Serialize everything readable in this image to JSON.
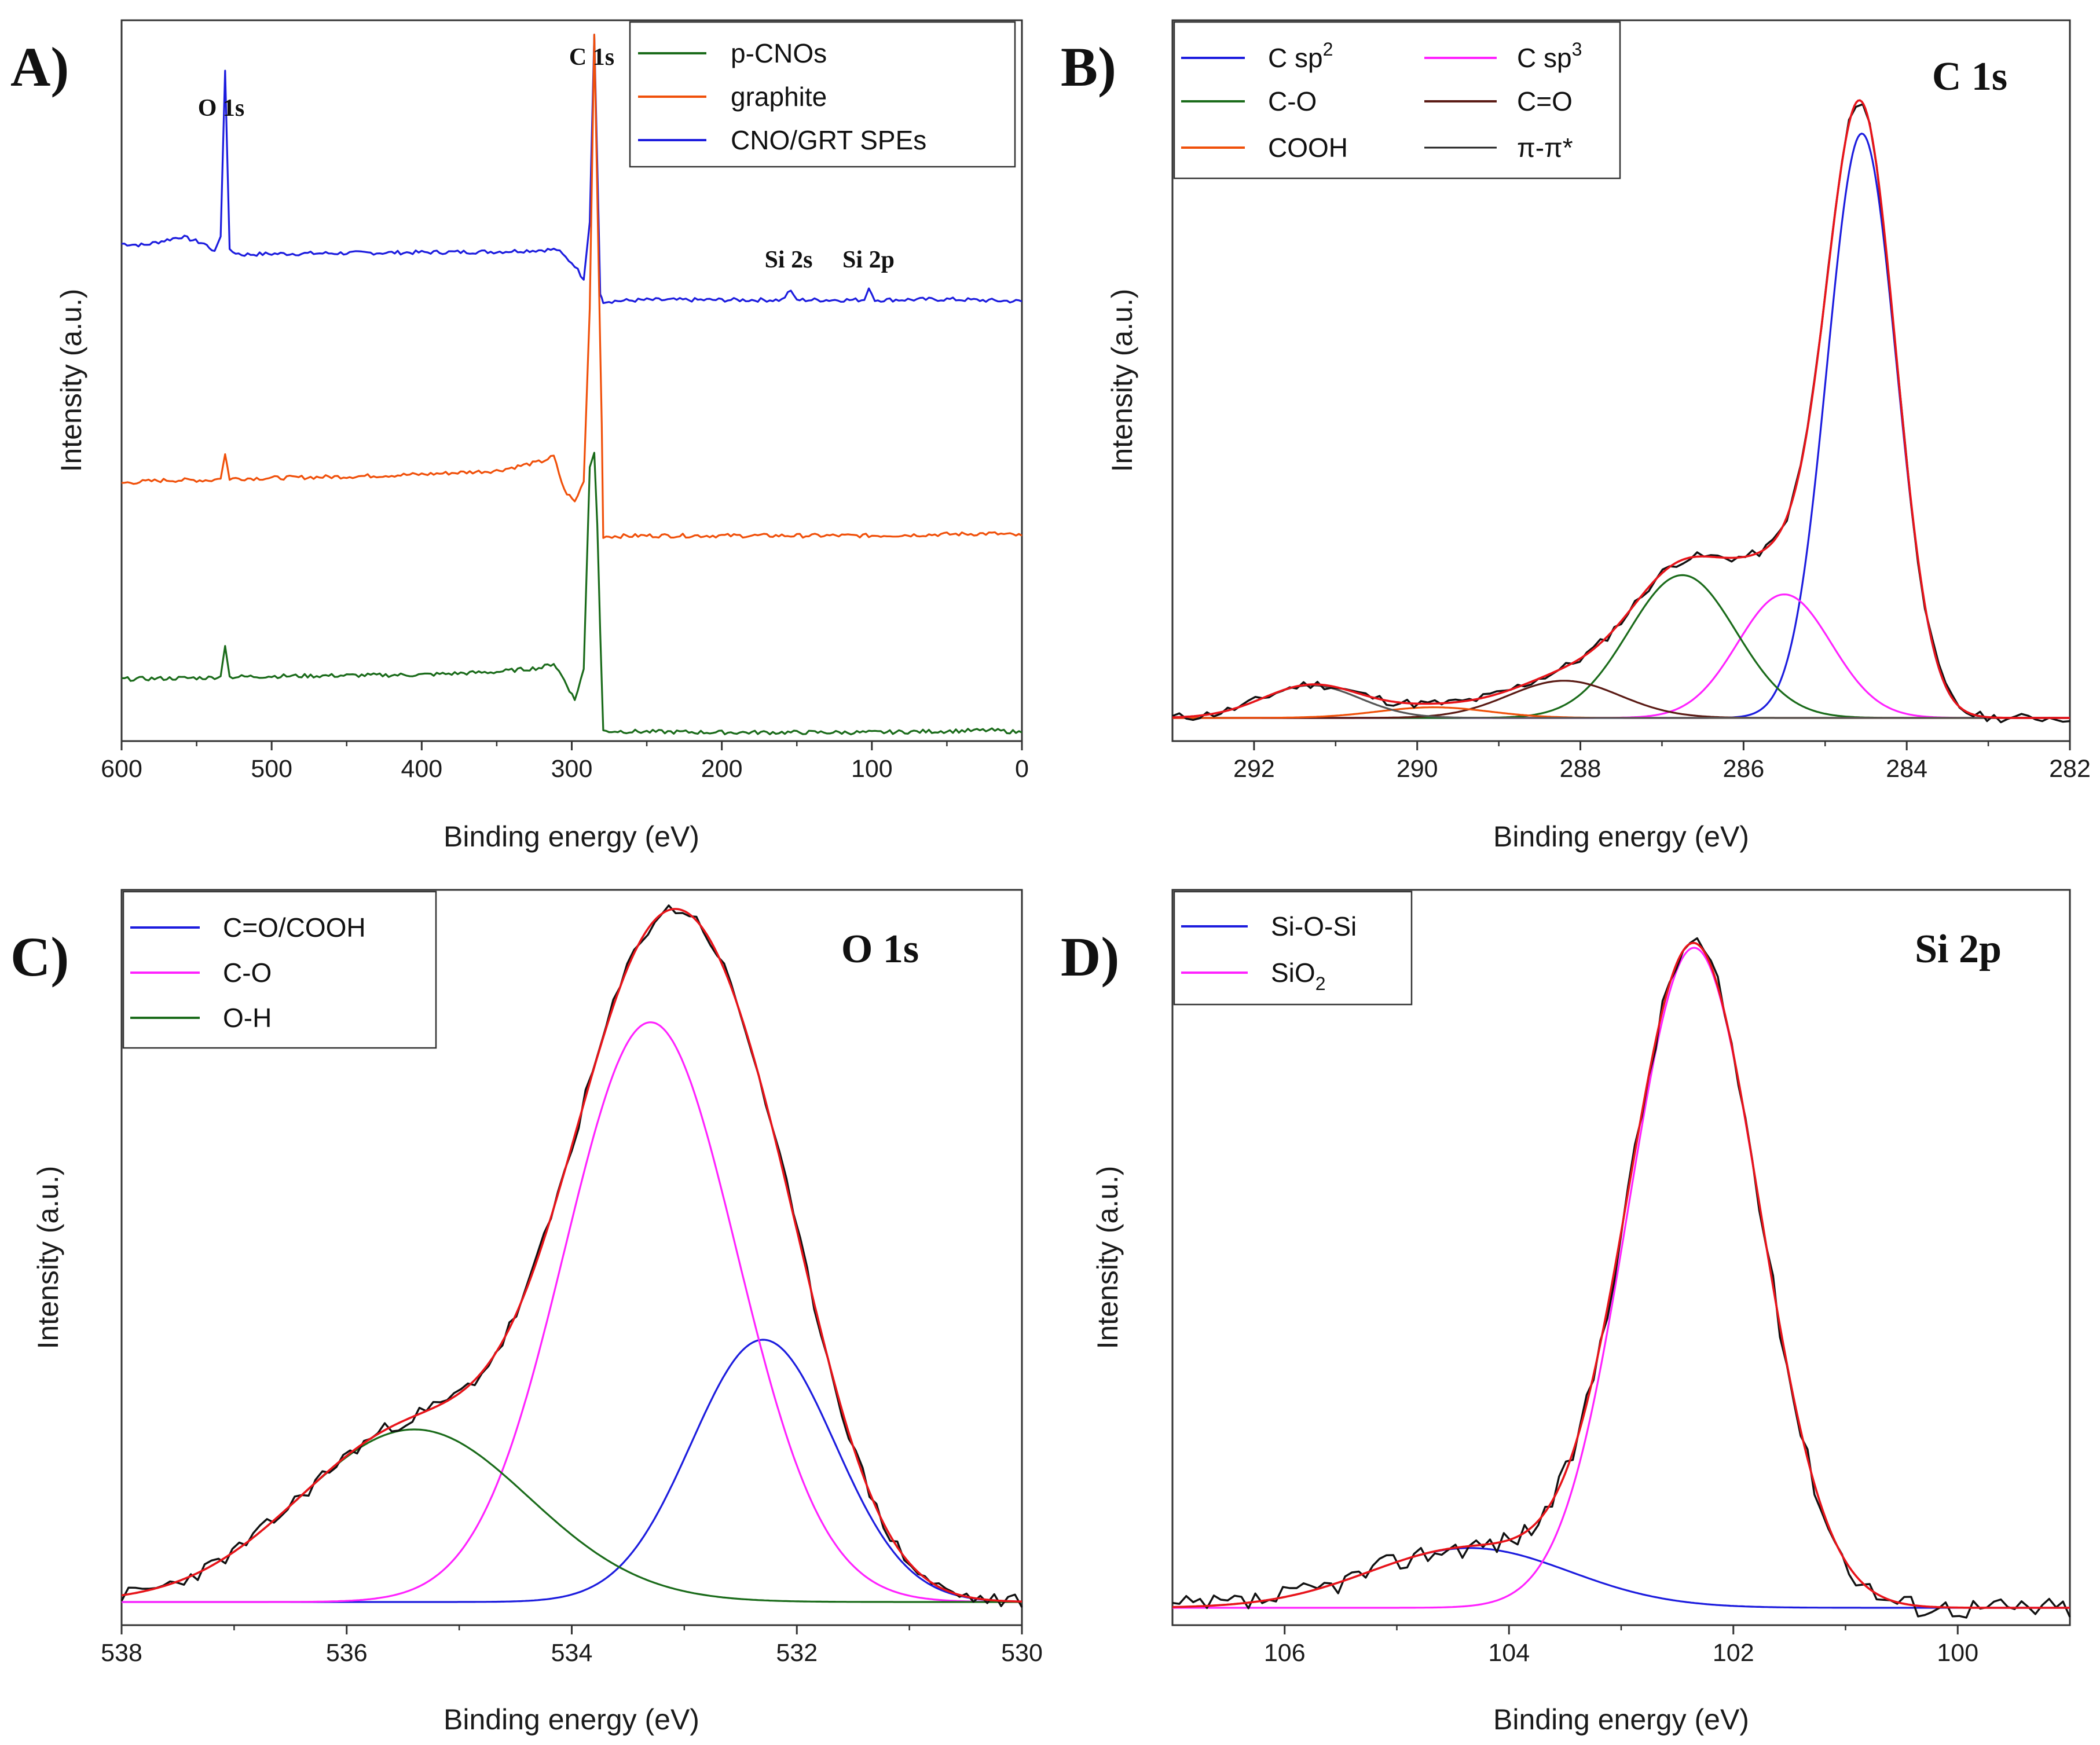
{
  "chart_data": [
    {
      "panel": "A)",
      "type": "line",
      "xlabel": "Binding energy (eV)",
      "ylabel": "Intensity (a.u.)",
      "xlim": [
        600,
        0
      ],
      "xticks": [
        600,
        500,
        400,
        300,
        200,
        100,
        0
      ],
      "ylim": [
        0,
        100
      ],
      "legend": {
        "position": "top-right",
        "entries": [
          "p-CNOs",
          "graphite",
          "CNO/GRT SPEs"
        ]
      },
      "annotations": [
        "O 1s",
        "C 1s",
        "Si 2s",
        "Si 2p"
      ],
      "series": [
        {
          "name": "CNO/GRT SPEs",
          "color": "#1c1cde",
          "points": [
            [
              600,
              69
            ],
            [
              585,
              68.8
            ],
            [
              560,
              70
            ],
            [
              545,
              69
            ],
            [
              538,
              68
            ],
            [
              534,
              70
            ],
            [
              531,
              93
            ],
            [
              528,
              68
            ],
            [
              520,
              67.5
            ],
            [
              500,
              67.6
            ],
            [
              450,
              67.7
            ],
            [
              400,
              67.8
            ],
            [
              350,
              67.9
            ],
            [
              310,
              68.2
            ],
            [
              298,
              66
            ],
            [
              292,
              64
            ],
            [
              288,
              72
            ],
            [
              285,
              98
            ],
            [
              283,
              80
            ],
            [
              281,
              62
            ],
            [
              279,
              61
            ],
            [
              250,
              61.2
            ],
            [
              200,
              61.2
            ],
            [
              160,
              61.2
            ],
            [
              154,
              62.5
            ],
            [
              150,
              61.2
            ],
            [
              105,
              61.2
            ],
            [
              102,
              62.8
            ],
            [
              98,
              61.2
            ],
            [
              50,
              61.3
            ],
            [
              0,
              61
            ]
          ]
        },
        {
          "name": "graphite",
          "color": "#f0500a",
          "points": [
            [
              600,
              35.8
            ],
            [
              570,
              36.2
            ],
            [
              540,
              36.2
            ],
            [
              534,
              36.4
            ],
            [
              531,
              39.8
            ],
            [
              528,
              36.4
            ],
            [
              500,
              36.5
            ],
            [
              450,
              36.7
            ],
            [
              400,
              37
            ],
            [
              350,
              37.5
            ],
            [
              320,
              38.8
            ],
            [
              312,
              39.5
            ],
            [
              305,
              34.8
            ],
            [
              298,
              33.2
            ],
            [
              292,
              36
            ],
            [
              288,
              60
            ],
            [
              285,
              98
            ],
            [
              282,
              65
            ],
            [
              280,
              44
            ],
            [
              279,
              28.4
            ],
            [
              250,
              28.5
            ],
            [
              200,
              28.5
            ],
            [
              100,
              28.5
            ],
            [
              20,
              28.8
            ],
            [
              0,
              28.5
            ]
          ]
        },
        {
          "name": "p-CNOs",
          "color": "#1a6b1a",
          "points": [
            [
              600,
              8.6
            ],
            [
              570,
              8.7
            ],
            [
              540,
              8.8
            ],
            [
              534,
              9
            ],
            [
              531,
              13.2
            ],
            [
              528,
              8.9
            ],
            [
              500,
              9
            ],
            [
              450,
              9.1
            ],
            [
              400,
              9.2
            ],
            [
              350,
              9.6
            ],
            [
              320,
              10.2
            ],
            [
              312,
              10.8
            ],
            [
              305,
              8.5
            ],
            [
              298,
              5.7
            ],
            [
              292,
              10
            ],
            [
              288,
              38
            ],
            [
              285,
              40
            ],
            [
              283,
              30
            ],
            [
              281,
              15
            ],
            [
              279,
              1.4
            ],
            [
              250,
              1.3
            ],
            [
              200,
              1.2
            ],
            [
              100,
              1.2
            ],
            [
              20,
              1.5
            ],
            [
              0,
              1.2
            ]
          ]
        }
      ]
    },
    {
      "panel": "B)",
      "type": "line",
      "heading": "C 1s",
      "xlabel": "Binding energy (eV)",
      "ylabel": "Intensity (a.u.)",
      "xlim": [
        293,
        282
      ],
      "xticks": [
        292,
        290,
        288,
        286,
        284,
        282
      ],
      "ylim": [
        0,
        100
      ],
      "legend": {
        "position": "top-left",
        "entries": [
          {
            "label": "C sp",
            "sup": "2",
            "color": "#1c1cde"
          },
          {
            "label": "C-O",
            "sup": "",
            "color": "#1a6b1a"
          },
          {
            "label": "COOH",
            "sup": "",
            "color": "#f0500a"
          },
          {
            "label": "C sp",
            "sup": "3",
            "color": "#ff22ff"
          },
          {
            "label": "C=O",
            "sup": "",
            "color": "#5a1a14"
          },
          {
            "label": "π-π*",
            "sup": "",
            "color": "#222222"
          }
        ]
      },
      "components": [
        {
          "name": "C sp2",
          "color": "#1c1cde",
          "center": 284.55,
          "height": 88,
          "fwhm": 1.0
        },
        {
          "name": "C sp3",
          "color": "#ff22ff",
          "center": 285.5,
          "height": 18.6,
          "fwhm": 1.35
        },
        {
          "name": "C-O",
          "color": "#1a6b1a",
          "center": 286.75,
          "height": 21.5,
          "fwhm": 1.55
        },
        {
          "name": "C=O",
          "color": "#5a1a14",
          "center": 288.2,
          "height": 5.6,
          "fwhm": 1.6
        },
        {
          "name": "COOH",
          "color": "#f0500a",
          "center": 289.8,
          "height": 1.6,
          "fwhm": 1.6
        },
        {
          "name": "π-π*",
          "color": "#555555",
          "center": 291.3,
          "height": 4.9,
          "fwhm": 1.4
        }
      ],
      "fit_color": "#e8141a",
      "raw_color": "#111111"
    },
    {
      "panel": "C)",
      "type": "line",
      "heading": "O 1s",
      "xlabel": "Binding energy (eV)",
      "ylabel": "Intensity (a.u.)",
      "xlim": [
        538,
        530
      ],
      "xticks": [
        538,
        536,
        534,
        532,
        530
      ],
      "ylim": [
        0,
        100
      ],
      "legend": {
        "position": "top-left",
        "entries": [
          {
            "label": "C=O/COOH",
            "sup": "",
            "color": "#1c1cde"
          },
          {
            "label": "C-O",
            "sup": "",
            "color": "#ff22ff"
          },
          {
            "label": "O-H",
            "sup": "",
            "color": "#1a6b1a"
          }
        ]
      },
      "components": [
        {
          "name": "C=O/COOH",
          "color": "#1c1cde",
          "center": 532.3,
          "height": 38,
          "fwhm": 1.5
        },
        {
          "name": "C-O",
          "color": "#ff22ff",
          "center": 533.3,
          "height": 84,
          "fwhm": 1.8
        },
        {
          "name": "O-H",
          "color": "#1a6b1a",
          "center": 535.4,
          "height": 25,
          "fwhm": 2.4
        }
      ],
      "fit_color": "#e8141a",
      "raw_color": "#111111"
    },
    {
      "panel": "D)",
      "type": "line",
      "heading": "Si 2p",
      "xlabel": "Binding energy (eV)",
      "ylabel": "Intensity (a.u.)",
      "xlim": [
        107,
        99
      ],
      "xticks": [
        106,
        104,
        102,
        100
      ],
      "ylim": [
        0,
        100
      ],
      "legend": {
        "position": "top-left",
        "entries": [
          {
            "label": "Si-O-Si",
            "sup": "",
            "color": "#1c1cde"
          },
          {
            "label": "SiO",
            "sup": "2",
            "color": "#ff22ff"
          }
        ]
      },
      "components": [
        {
          "name": "Si-O-Si",
          "color": "#1c1cde",
          "center": 104.35,
          "height": 8.6,
          "fwhm": 2.1
        },
        {
          "name": "SiO2",
          "color": "#ff22ff",
          "center": 102.35,
          "height": 95,
          "fwhm": 1.38
        }
      ],
      "fit_color": "#e8141a",
      "raw_color": "#111111"
    }
  ]
}
